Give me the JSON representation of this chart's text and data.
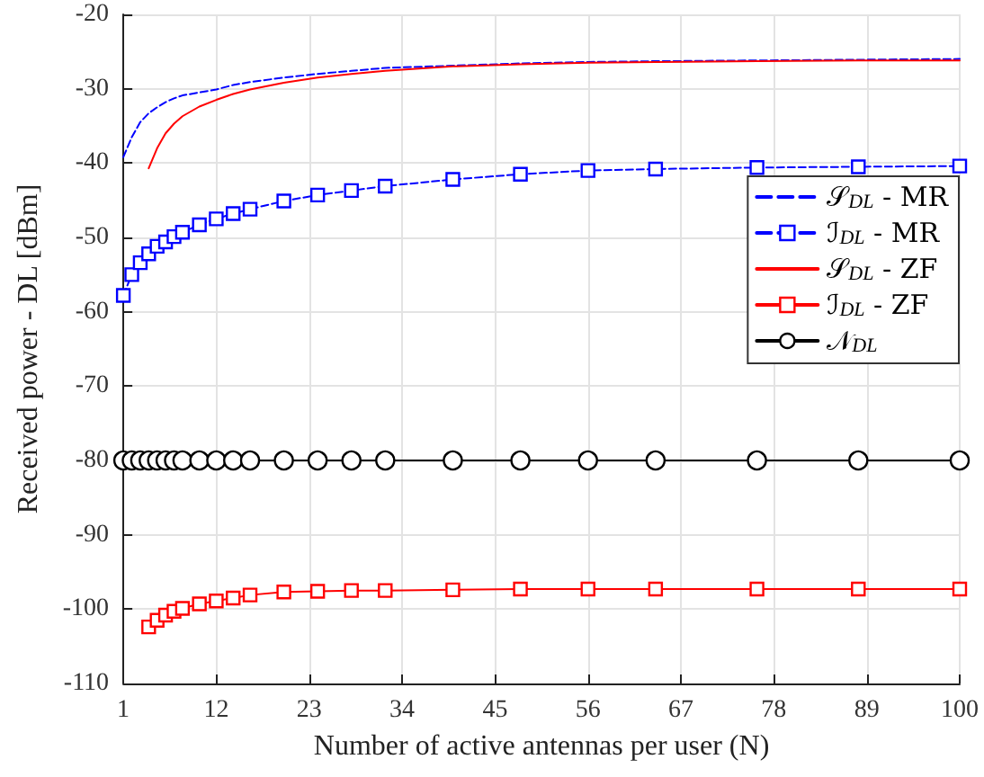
{
  "chart_data": {
    "type": "line",
    "xlabel": "Number of active antennas per user (N)",
    "ylabel": "Received power - DL [dBm]",
    "xlim": [
      1,
      100
    ],
    "xticks": [
      1,
      12,
      23,
      34,
      45,
      56,
      67,
      78,
      89,
      100
    ],
    "ylim": [
      -110,
      -20
    ],
    "yticks": [
      -110,
      -100,
      -90,
      -80,
      -70,
      -60,
      -50,
      -40,
      -30,
      -20
    ],
    "grid": true,
    "legend": "right",
    "x": [
      1,
      2,
      3,
      4,
      5,
      6,
      7,
      8,
      10,
      12,
      14,
      16,
      20,
      24,
      28,
      32,
      40,
      48,
      56,
      64,
      76,
      88,
      100
    ],
    "series": [
      {
        "name": "𝒮$_{DL}$ - MR",
        "color": "#0000ff",
        "line_style": "dashed",
        "marker": "none",
        "values": [
          -39.2,
          -36.5,
          -34.5,
          -33.3,
          -32.5,
          -31.8,
          -31.3,
          -30.9,
          -30.5,
          -30.1,
          -29.5,
          -29.1,
          -28.5,
          -28.0,
          -27.6,
          -27.2,
          -26.9,
          -26.6,
          -26.4,
          -26.3,
          -26.2,
          -26.1,
          -26.0
        ]
      },
      {
        "name": "ℐ$_{DL}$ - MR",
        "color": "#0000ff",
        "line_style": "dashed",
        "marker": "square",
        "values": [
          -57.8,
          -55.0,
          -53.4,
          -52.2,
          -51.2,
          -50.6,
          -49.9,
          -49.3,
          -48.3,
          -47.5,
          -46.8,
          -46.2,
          -45.1,
          -44.3,
          -43.7,
          -43.1,
          -42.2,
          -41.5,
          -41.0,
          -40.8,
          -40.6,
          -40.5,
          -40.4
        ]
      },
      {
        "name": "𝒮$_{DL}$ - ZF",
        "color": "#ff0000",
        "line_style": "solid",
        "marker": "none",
        "values": [
          null,
          null,
          null,
          -40.7,
          -38.0,
          -36.0,
          -34.7,
          -33.7,
          -32.4,
          -31.5,
          -30.7,
          -30.1,
          -29.2,
          -28.5,
          -28.0,
          -27.6,
          -27.0,
          -26.7,
          -26.5,
          -26.4,
          -26.3,
          -26.2,
          -26.2
        ]
      },
      {
        "name": "ℐ$_{DL}$ - ZF",
        "color": "#ff0000",
        "line_style": "solid",
        "marker": "square",
        "values": [
          null,
          null,
          null,
          -102.4,
          -101.5,
          -100.8,
          -100.3,
          -99.9,
          -99.3,
          -98.9,
          -98.5,
          -98.1,
          -97.7,
          -97.6,
          -97.5,
          -97.5,
          -97.4,
          -97.3,
          -97.3,
          -97.3,
          -97.3,
          -97.3,
          -97.3
        ]
      },
      {
        "name": "𝒩$_{DL}$",
        "color": "#000000",
        "line_style": "solid",
        "marker": "circle",
        "values": [
          -80,
          -80,
          -80,
          -80,
          -80,
          -80,
          -80,
          -80,
          -80,
          -80,
          -80,
          -80,
          -80,
          -80,
          -80,
          -80,
          -80,
          -80,
          -80,
          -80,
          -80,
          -80,
          -80
        ]
      }
    ]
  }
}
